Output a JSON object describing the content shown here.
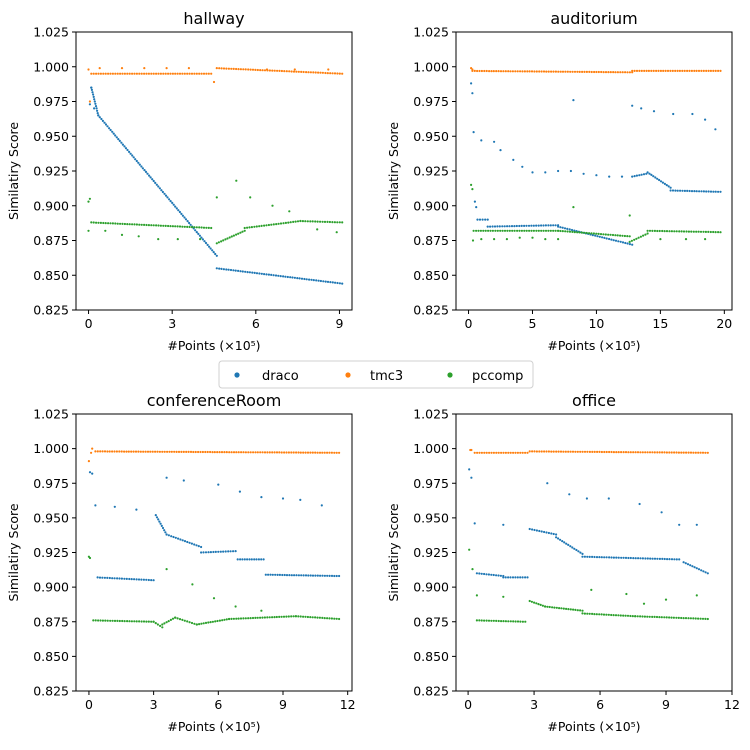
{
  "legend": {
    "placement": "center",
    "entries": [
      {
        "name": "draco",
        "color": "#1f77b4"
      },
      {
        "name": "tmc3",
        "color": "#ff7f0e"
      },
      {
        "name": "pccomp",
        "color": "#2ca02c"
      }
    ]
  },
  "chart_data": [
    {
      "type": "scatter",
      "title": "hallway",
      "xlabel": "#Points (×10⁵)",
      "ylabel": "Similatiry Score",
      "xlim": [
        -0.45,
        9.45
      ],
      "ylim": [
        0.825,
        1.025
      ],
      "xticks": [
        0,
        3,
        6,
        9
      ],
      "yticks": [
        0.825,
        0.85,
        0.875,
        0.9,
        0.925,
        0.95,
        0.975,
        1.0,
        1.025
      ],
      "series": [
        {
          "name": "draco",
          "segments": [
            [
              0.1,
              0.985,
              0.35,
              0.965
            ],
            [
              0.35,
              0.965,
              4.6,
              0.864
            ],
            [
              4.6,
              0.855,
              9.1,
              0.844
            ]
          ],
          "isolated": [
            [
              0.05,
              0.973
            ],
            [
              0.1,
              0.985
            ],
            [
              0.2,
              0.97
            ]
          ]
        },
        {
          "name": "tmc3",
          "segments": [
            [
              0.1,
              0.995,
              4.4,
              0.995
            ],
            [
              4.6,
              0.999,
              9.1,
              0.995
            ]
          ],
          "isolated": [
            [
              0.0,
              0.998
            ],
            [
              0.05,
              0.975
            ],
            [
              0.4,
              0.999
            ],
            [
              1.2,
              0.999
            ],
            [
              2.0,
              0.999
            ],
            [
              2.8,
              0.999
            ],
            [
              3.6,
              0.999
            ],
            [
              4.5,
              0.989
            ],
            [
              6.4,
              0.998
            ],
            [
              7.4,
              0.998
            ],
            [
              8.6,
              0.998
            ]
          ]
        },
        {
          "name": "pccomp",
          "segments": [
            [
              0.1,
              0.888,
              4.4,
              0.884
            ],
            [
              4.6,
              0.873,
              5.6,
              0.882
            ],
            [
              5.6,
              0.884,
              7.6,
              0.889
            ],
            [
              7.6,
              0.889,
              9.1,
              0.888
            ]
          ],
          "isolated": [
            [
              0.0,
              0.903
            ],
            [
              0.0,
              0.882
            ],
            [
              0.05,
              0.905
            ],
            [
              0.6,
              0.882
            ],
            [
              1.2,
              0.879
            ],
            [
              1.8,
              0.878
            ],
            [
              2.5,
              0.876
            ],
            [
              3.2,
              0.876
            ],
            [
              4.0,
              0.876
            ],
            [
              4.6,
              0.906
            ],
            [
              5.3,
              0.918
            ],
            [
              5.8,
              0.906
            ],
            [
              6.6,
              0.9
            ],
            [
              7.2,
              0.896
            ],
            [
              8.2,
              0.883
            ],
            [
              8.9,
              0.881
            ]
          ]
        }
      ]
    },
    {
      "type": "scatter",
      "title": "auditorium",
      "xlabel": "#Points (×10⁵)",
      "ylabel": "Similatiry Score",
      "xlim": [
        -0.98,
        20.6
      ],
      "ylim": [
        0.825,
        1.025
      ],
      "xticks": [
        0,
        5,
        10,
        15,
        20
      ],
      "yticks": [
        0.825,
        0.85,
        0.875,
        0.9,
        0.925,
        0.95,
        0.975,
        1.0,
        1.025
      ],
      "series": [
        {
          "name": "draco",
          "segments": [
            [
              0.7,
              0.89,
              1.5,
              0.89
            ],
            [
              1.5,
              0.885,
              7.0,
              0.886
            ],
            [
              7.0,
              0.885,
              12.8,
              0.872
            ],
            [
              12.8,
              0.921,
              13.9,
              0.923
            ],
            [
              14.0,
              0.924,
              15.8,
              0.913
            ],
            [
              15.8,
              0.911,
              19.7,
              0.91
            ]
          ],
          "isolated": [
            [
              0.2,
              0.988
            ],
            [
              0.3,
              0.981
            ],
            [
              0.4,
              0.953
            ],
            [
              0.5,
              0.903
            ],
            [
              0.6,
              0.899
            ],
            [
              1.0,
              0.947
            ],
            [
              2.0,
              0.946
            ],
            [
              2.5,
              0.94
            ],
            [
              3.5,
              0.933
            ],
            [
              4.2,
              0.928
            ],
            [
              5.0,
              0.924
            ],
            [
              6.0,
              0.924
            ],
            [
              7.0,
              0.925
            ],
            [
              8.0,
              0.925
            ],
            [
              9.0,
              0.923
            ],
            [
              10.0,
              0.922
            ],
            [
              11.0,
              0.921
            ],
            [
              12.0,
              0.921
            ],
            [
              8.2,
              0.976
            ],
            [
              12.8,
              0.972
            ],
            [
              13.5,
              0.97
            ],
            [
              14.5,
              0.968
            ],
            [
              16.0,
              0.966
            ],
            [
              17.5,
              0.966
            ],
            [
              18.5,
              0.962
            ],
            [
              19.3,
              0.955
            ]
          ]
        },
        {
          "name": "tmc3",
          "segments": [
            [
              0.3,
              0.997,
              12.8,
              0.996
            ],
            [
              12.8,
              0.997,
              19.7,
              0.997
            ]
          ],
          "isolated": [
            [
              0.2,
              0.999
            ],
            [
              0.3,
              0.998
            ]
          ]
        },
        {
          "name": "pccomp",
          "segments": [
            [
              0.4,
              0.882,
              7.0,
              0.882
            ],
            [
              7.0,
              0.882,
              12.6,
              0.878
            ],
            [
              12.6,
              0.874,
              14.0,
              0.88
            ],
            [
              14.0,
              0.882,
              19.7,
              0.881
            ]
          ],
          "isolated": [
            [
              0.2,
              0.915
            ],
            [
              0.3,
              0.912
            ],
            [
              0.35,
              0.875
            ],
            [
              1.0,
              0.876
            ],
            [
              2.0,
              0.876
            ],
            [
              3.0,
              0.876
            ],
            [
              4.0,
              0.877
            ],
            [
              5.0,
              0.877
            ],
            [
              6.0,
              0.876
            ],
            [
              7.0,
              0.876
            ],
            [
              8.2,
              0.899
            ],
            [
              12.6,
              0.893
            ],
            [
              15.0,
              0.876
            ],
            [
              17.0,
              0.876
            ],
            [
              18.5,
              0.876
            ]
          ]
        }
      ]
    },
    {
      "type": "scatter",
      "title": "conferenceRoom",
      "xlabel": "#Points (×10⁵)",
      "ylabel": "Similatiry Score",
      "xlim": [
        -0.6,
        12.2
      ],
      "ylim": [
        0.825,
        1.025
      ],
      "xticks": [
        0,
        3,
        6,
        9,
        12
      ],
      "yticks": [
        0.825,
        0.85,
        0.875,
        0.9,
        0.925,
        0.95,
        0.975,
        1.0,
        1.025
      ],
      "series": [
        {
          "name": "draco",
          "segments": [
            [
              0.4,
              0.907,
              3.0,
              0.905
            ],
            [
              3.1,
              0.952,
              3.6,
              0.938
            ],
            [
              3.6,
              0.938,
              5.2,
              0.929
            ],
            [
              5.2,
              0.925,
              6.8,
              0.926
            ],
            [
              6.9,
              0.92,
              8.1,
              0.92
            ],
            [
              8.2,
              0.909,
              11.6,
              0.908
            ]
          ],
          "isolated": [
            [
              0.05,
              0.983
            ],
            [
              0.15,
              0.982
            ],
            [
              0.3,
              0.959
            ],
            [
              1.2,
              0.958
            ],
            [
              2.2,
              0.956
            ],
            [
              3.6,
              0.979
            ],
            [
              4.4,
              0.977
            ],
            [
              6.0,
              0.974
            ],
            [
              7.0,
              0.969
            ],
            [
              8.0,
              0.965
            ],
            [
              9.0,
              0.964
            ],
            [
              9.8,
              0.963
            ],
            [
              10.8,
              0.959
            ]
          ]
        },
        {
          "name": "tmc3",
          "segments": [
            [
              0.3,
              0.998,
              11.6,
              0.997
            ]
          ],
          "isolated": [
            [
              0.0,
              0.991
            ],
            [
              0.1,
              0.997
            ],
            [
              0.15,
              1.0
            ]
          ]
        },
        {
          "name": "pccomp",
          "segments": [
            [
              0.2,
              0.876,
              3.0,
              0.875
            ],
            [
              3.0,
              0.875,
              3.4,
              0.871
            ],
            [
              3.4,
              0.873,
              4.0,
              0.878
            ],
            [
              4.0,
              0.878,
              5.0,
              0.873
            ],
            [
              5.0,
              0.873,
              6.5,
              0.877
            ],
            [
              6.5,
              0.877,
              9.6,
              0.879
            ],
            [
              9.6,
              0.879,
              11.6,
              0.877
            ]
          ],
          "isolated": [
            [
              0.0,
              0.922
            ],
            [
              0.05,
              0.921
            ],
            [
              3.6,
              0.913
            ],
            [
              4.8,
              0.902
            ],
            [
              5.8,
              0.892
            ],
            [
              6.8,
              0.886
            ],
            [
              8.0,
              0.883
            ]
          ]
        }
      ]
    },
    {
      "type": "scatter",
      "title": "office",
      "xlabel": "#Points (×10⁵)",
      "ylabel": "Similatiry Score",
      "xlim": [
        -0.55,
        12.0
      ],
      "ylim": [
        0.825,
        1.025
      ],
      "xticks": [
        0,
        3,
        6,
        9,
        12
      ],
      "yticks": [
        0.825,
        0.85,
        0.875,
        0.9,
        0.925,
        0.95,
        0.975,
        1.0,
        1.025
      ],
      "series": [
        {
          "name": "draco",
          "segments": [
            [
              0.4,
              0.91,
              1.6,
              0.908
            ],
            [
              1.6,
              0.907,
              2.7,
              0.907
            ],
            [
              2.8,
              0.942,
              4.0,
              0.938
            ],
            [
              4.0,
              0.936,
              5.2,
              0.924
            ],
            [
              5.2,
              0.922,
              9.6,
              0.92
            ],
            [
              9.8,
              0.918,
              10.9,
              0.91
            ]
          ],
          "isolated": [
            [
              0.05,
              0.985
            ],
            [
              0.15,
              0.979
            ],
            [
              0.3,
              0.946
            ],
            [
              1.6,
              0.945
            ],
            [
              3.6,
              0.975
            ],
            [
              4.6,
              0.967
            ],
            [
              5.4,
              0.964
            ],
            [
              6.4,
              0.964
            ],
            [
              7.8,
              0.96
            ],
            [
              8.8,
              0.954
            ],
            [
              9.6,
              0.945
            ],
            [
              10.4,
              0.945
            ]
          ]
        },
        {
          "name": "tmc3",
          "segments": [
            [
              0.3,
              0.997,
              2.7,
              0.997
            ],
            [
              2.8,
              0.998,
              10.9,
              0.997
            ]
          ],
          "isolated": [
            [
              0.1,
              0.999
            ],
            [
              0.15,
              0.999
            ]
          ]
        },
        {
          "name": "pccomp",
          "segments": [
            [
              0.4,
              0.876,
              2.6,
              0.875
            ],
            [
              2.8,
              0.89,
              3.5,
              0.886
            ],
            [
              3.5,
              0.886,
              5.2,
              0.883
            ],
            [
              5.2,
              0.881,
              7.6,
              0.879
            ],
            [
              7.6,
              0.879,
              10.9,
              0.877
            ]
          ],
          "isolated": [
            [
              0.05,
              0.927
            ],
            [
              0.2,
              0.913
            ],
            [
              0.4,
              0.894
            ],
            [
              1.6,
              0.893
            ],
            [
              5.6,
              0.898
            ],
            [
              7.2,
              0.895
            ],
            [
              8.0,
              0.888
            ],
            [
              9.0,
              0.891
            ],
            [
              10.4,
              0.894
            ]
          ]
        }
      ]
    }
  ]
}
